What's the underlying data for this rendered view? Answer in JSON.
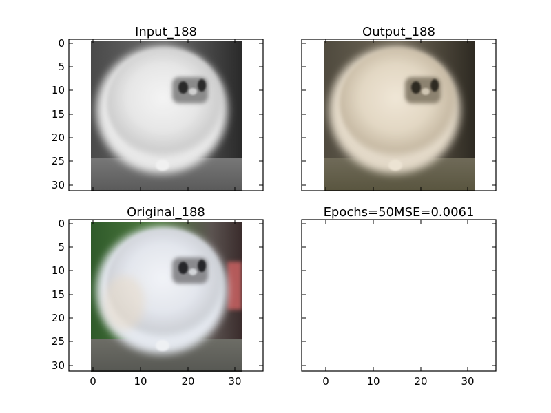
{
  "figure": {
    "panels": [
      {
        "title": "Input_188",
        "image": "grayscale photo of a fluffy white dog",
        "tone": "gray"
      },
      {
        "title": "Output_188",
        "image": "reconstructed color photo of a fluffy white dog",
        "tone": "sepia"
      },
      {
        "title": "Original_188",
        "image": "color photo of a fluffy white dog on green background",
        "tone": "color"
      },
      {
        "title": "Epochs=50MSE=0.0061",
        "image": "",
        "tone": "empty"
      }
    ],
    "y_ticks": [
      "0",
      "5",
      "10",
      "15",
      "20",
      "25",
      "30"
    ],
    "x_ticks": [
      "0",
      "10",
      "20",
      "30"
    ],
    "axis_ranges": {
      "x": [
        -5,
        36
      ],
      "y": [
        31.5,
        -0.5
      ]
    },
    "image_extent": [
      -0.5,
      31.5
    ],
    "colors": {
      "axes": "#000000",
      "background": "#ffffff"
    }
  }
}
